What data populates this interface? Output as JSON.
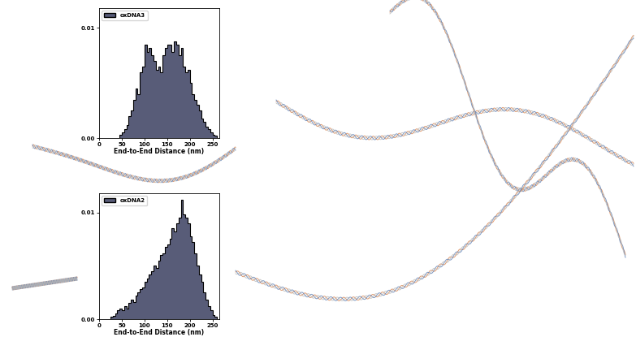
{
  "chart_data": [
    {
      "type": "histogram",
      "x_label": "End-to-End Distance (nm)",
      "bins": [
        45,
        50,
        55,
        60,
        65,
        70,
        75,
        80,
        85,
        90,
        95,
        100,
        105,
        110,
        115,
        120,
        125,
        130,
        135,
        140,
        145,
        150,
        155,
        160,
        165,
        170,
        175,
        180,
        185,
        190,
        195,
        200,
        205,
        210,
        215,
        220,
        225,
        230,
        235,
        240,
        245,
        250,
        255,
        260
      ],
      "series": [
        {
          "name": "oxDNA3",
          "color": "#585c78",
          "values": [
            0.0003,
            0.0005,
            0.0008,
            0.0012,
            0.002,
            0.0025,
            0.0035,
            0.0045,
            0.004,
            0.006,
            0.0065,
            0.0085,
            0.0078,
            0.0082,
            0.0075,
            0.007,
            0.0062,
            0.0065,
            0.006,
            0.0075,
            0.0082,
            0.0085,
            0.0085,
            0.0078,
            0.0088,
            0.0085,
            0.0075,
            0.0082,
            0.0065,
            0.006,
            0.0062,
            0.005,
            0.004,
            0.0035,
            0.003,
            0.0025,
            0.0018,
            0.0015,
            0.001,
            0.0008,
            0.0005,
            0.0003,
            0.0002
          ]
        }
      ],
      "xlim": [
        0,
        265
      ],
      "ylim": [
        0,
        0.0118
      ],
      "xticks": [
        0,
        50,
        100,
        150,
        200,
        250
      ],
      "yticks": [
        {
          "value": 0,
          "label": "0.00"
        },
        0.01
      ],
      "legend": "upper left"
    },
    {
      "type": "histogram",
      "x_label": "End-to-End Distance (nm)",
      "bins": [
        25,
        30,
        35,
        40,
        45,
        50,
        55,
        60,
        65,
        70,
        75,
        80,
        85,
        90,
        95,
        100,
        105,
        110,
        115,
        120,
        125,
        130,
        135,
        140,
        145,
        150,
        155,
        160,
        165,
        170,
        175,
        180,
        185,
        190,
        195,
        200,
        205,
        210,
        215,
        220,
        225,
        230,
        235,
        240,
        245,
        250,
        255,
        260
      ],
      "series": [
        {
          "name": "oxDNA2",
          "color": "#585c78",
          "values": [
            0.0002,
            0.0003,
            0.0005,
            0.0008,
            0.001,
            0.0008,
            0.0012,
            0.001,
            0.0015,
            0.0018,
            0.0016,
            0.0022,
            0.0025,
            0.0028,
            0.003,
            0.0035,
            0.0038,
            0.0042,
            0.0045,
            0.005,
            0.0048,
            0.0055,
            0.006,
            0.0062,
            0.0068,
            0.007,
            0.0075,
            0.0085,
            0.0082,
            0.009,
            0.0095,
            0.0112,
            0.0098,
            0.0095,
            0.009,
            0.0078,
            0.0072,
            0.0062,
            0.005,
            0.0042,
            0.0035,
            0.0025,
            0.0018,
            0.0012,
            0.0008,
            0.0004,
            0.0002
          ]
        }
      ],
      "xlim": [
        0,
        265
      ],
      "ylim": [
        0,
        0.0118
      ],
      "xticks": [
        0,
        50,
        100,
        150,
        200,
        250
      ],
      "yticks": [
        {
          "value": 0,
          "label": "0.00"
        },
        0.01
      ],
      "legend": "upper left"
    }
  ]
}
